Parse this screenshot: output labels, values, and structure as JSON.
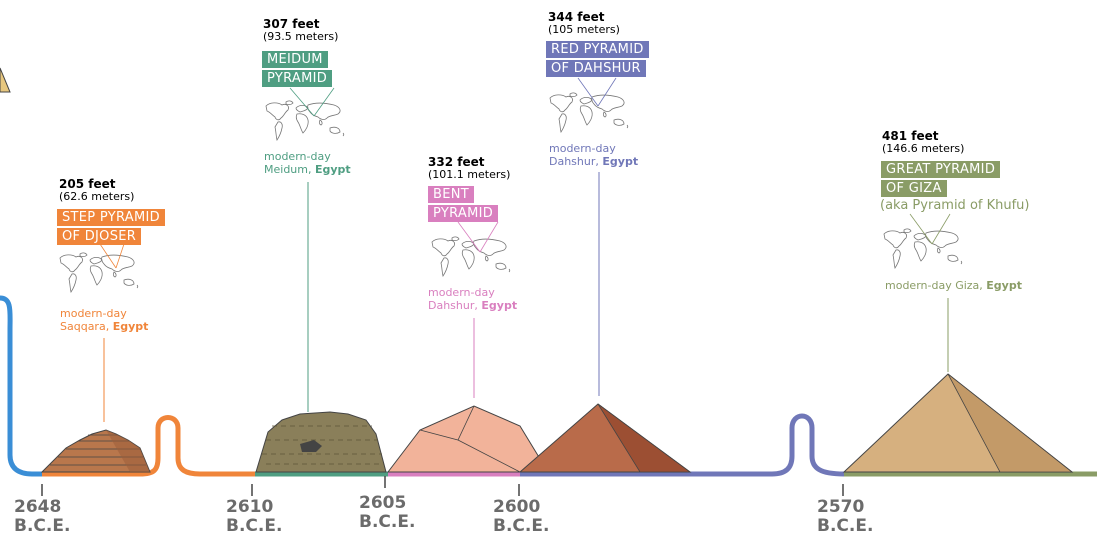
{
  "colors": {
    "orange": "#f0853a",
    "teal": "#4f9e82",
    "pink": "#d97fbf",
    "slate": "#7077b8",
    "olive": "#8a9c66",
    "blue": "#3a8ed6",
    "year": "#6b6b6b"
  },
  "pyramids": [
    {
      "key": "djoser",
      "height_ft": "205 feet",
      "height_m": "(62.6 meters)",
      "name_lines": [
        "STEP PYRAMID",
        "OF DJOSER"
      ],
      "location_prefix": "modern-day",
      "location_city": "Saqqara,",
      "location_country": "Egypt",
      "icon": "world-map-icon"
    },
    {
      "key": "meidum",
      "height_ft": "307 feet",
      "height_m": "(93.5 meters)",
      "name_lines": [
        "MEIDUM",
        "PYRAMID"
      ],
      "location_prefix": "modern-day",
      "location_city": "Meidum,",
      "location_country": "Egypt",
      "icon": "world-map-icon"
    },
    {
      "key": "bent",
      "height_ft": "332 feet",
      "height_m": "(101.1 meters)",
      "name_lines": [
        "BENT",
        "PYRAMID"
      ],
      "location_prefix": "modern-day",
      "location_city": "Dahshur,",
      "location_country": "Egypt",
      "icon": "world-map-icon"
    },
    {
      "key": "red",
      "height_ft": "344 feet",
      "height_m": "(105 meters)",
      "name_lines": [
        "RED PYRAMID",
        "OF DAHSHUR"
      ],
      "location_prefix": "modern-day",
      "location_city": "Dahshur,",
      "location_country": "Egypt",
      "icon": "world-map-icon"
    },
    {
      "key": "giza",
      "height_ft": "481 feet",
      "height_m": "(146.6 meters)",
      "name_lines": [
        "GREAT PYRAMID",
        "OF GIZA"
      ],
      "aka": "(aka Pyramid of Khufu)",
      "location_prefix": "modern-day Giza,",
      "location_country": "Egypt",
      "icon": "world-map-icon"
    }
  ],
  "years": [
    {
      "year": "2648",
      "era": "B.C.E."
    },
    {
      "year": "2610",
      "era": "B.C.E."
    },
    {
      "year": "2605",
      "era": "B.C.E."
    },
    {
      "year": "2600",
      "era": "B.C.E."
    },
    {
      "year": "2570",
      "era": "B.C.E."
    }
  ]
}
